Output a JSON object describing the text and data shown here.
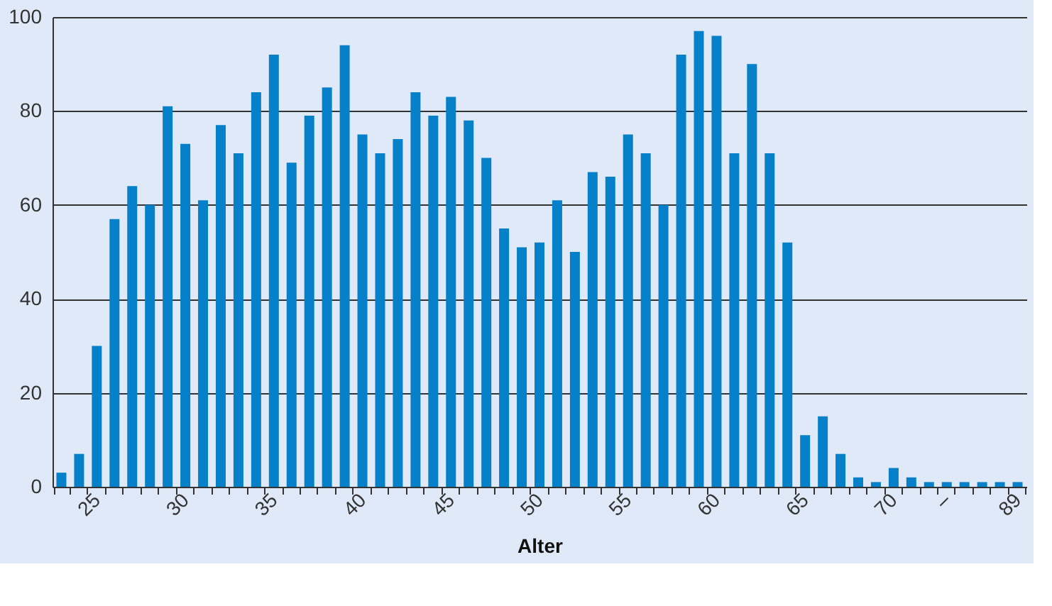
{
  "chart_data": {
    "type": "bar",
    "xlabel": "Alter",
    "categories": [
      null,
      null,
      "25",
      null,
      null,
      null,
      null,
      "30",
      null,
      null,
      null,
      null,
      "35",
      null,
      null,
      null,
      null,
      "40",
      null,
      null,
      null,
      null,
      "45",
      null,
      null,
      null,
      null,
      "50",
      null,
      null,
      null,
      null,
      "55",
      null,
      null,
      null,
      null,
      "60",
      null,
      null,
      null,
      null,
      "65",
      null,
      null,
      null,
      null,
      "70",
      null,
      null,
      "–",
      null,
      null,
      null,
      "89"
    ],
    "values": [
      3,
      7,
      30,
      57,
      64,
      60,
      81,
      73,
      61,
      77,
      71,
      84,
      92,
      69,
      79,
      85,
      94,
      75,
      71,
      74,
      84,
      79,
      83,
      78,
      70,
      55,
      51,
      52,
      61,
      50,
      67,
      66,
      75,
      71,
      60,
      92,
      97,
      96,
      71,
      90,
      71,
      52,
      11,
      15,
      7,
      2,
      1,
      4,
      2,
      1,
      1,
      1,
      1,
      1,
      1
    ],
    "color": "#0680c8",
    "ylim": [
      0,
      100
    ],
    "yticks": [
      0,
      20,
      40,
      60,
      80,
      100
    ],
    "grid": "y"
  }
}
